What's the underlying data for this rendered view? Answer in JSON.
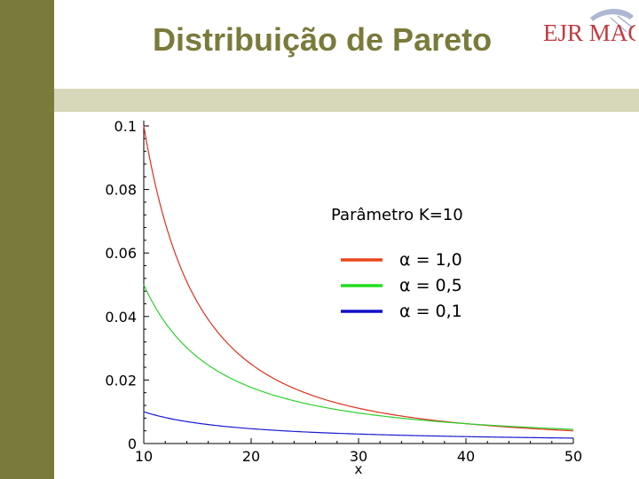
{
  "slide": {
    "title": "Distribuição de Pareto",
    "logo_text": "EJR MAC",
    "sidebar_color": "#7a7a3a",
    "band_color": "#d7d7b9",
    "title_color": "#7a7a3a",
    "logo_color": "#c23a40"
  },
  "chart_data": {
    "type": "line",
    "title": "",
    "xlabel": "x",
    "ylabel": "",
    "xlim": [
      10,
      50
    ],
    "ylim": [
      0,
      0.1
    ],
    "xticks": [
      10,
      20,
      30,
      40,
      50
    ],
    "yticks": [
      0,
      0.02,
      0.04,
      0.06,
      0.08,
      0.1
    ],
    "xtick_labels": [
      "10",
      "20",
      "30",
      "40",
      "50"
    ],
    "ytick_labels": [
      "0",
      "0.02",
      "0.04",
      "0.06",
      "0.08",
      "0.1"
    ],
    "legend_title": "Parâmetro K=10",
    "legend_position": "top-right",
    "grid": false,
    "series": [
      {
        "name": "α = 1,0",
        "color": "#e0301e",
        "legend_color": "#e8461a",
        "alpha": 1.0,
        "k": 10,
        "x": [
          10,
          12,
          14,
          16,
          18,
          20,
          22,
          25,
          28,
          30,
          35,
          40,
          45,
          50
        ],
        "y": [
          0.1,
          0.069,
          0.051,
          0.039,
          0.031,
          0.025,
          0.021,
          0.016,
          0.013,
          0.011,
          0.0082,
          0.0063,
          0.0049,
          0.004
        ]
      },
      {
        "name": "α = 0,5",
        "color": "#2ad12a",
        "legend_color": "#22dd22",
        "alpha": 0.5,
        "k": 10,
        "x": [
          10,
          12,
          14,
          16,
          18,
          20,
          22,
          25,
          28,
          30,
          35,
          40,
          45,
          50
        ],
        "y": [
          0.05,
          0.038,
          0.03,
          0.0247,
          0.0207,
          0.0177,
          0.0153,
          0.0126,
          0.0107,
          0.0096,
          0.0076,
          0.0063,
          0.0052,
          0.0045
        ]
      },
      {
        "name": "α = 0,1",
        "color": "#1a1ad0",
        "legend_color": "#1010c8",
        "alpha": 0.1,
        "k": 10,
        "x": [
          10,
          12,
          14,
          16,
          18,
          20,
          22,
          25,
          28,
          30,
          35,
          40,
          45,
          50
        ],
        "y": [
          0.01,
          0.0082,
          0.0069,
          0.006,
          0.0053,
          0.0047,
          0.0042,
          0.0036,
          0.0032,
          0.003,
          0.0025,
          0.0022,
          0.0019,
          0.0017
        ]
      }
    ]
  }
}
